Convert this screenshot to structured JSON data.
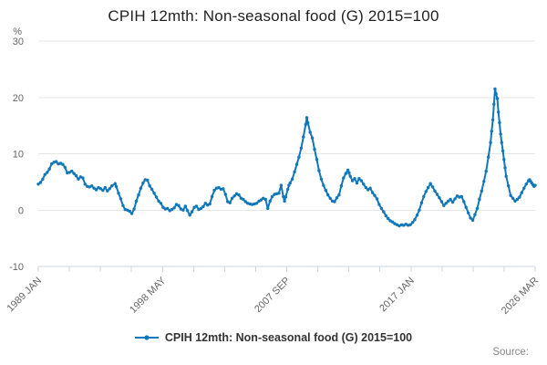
{
  "chart_data": {
    "type": "line",
    "title": "CPIH 12mth: Non-seasonal food (G) 2015=100",
    "ylabel": "%",
    "legend_label": "CPIH 12mth: Non-seasonal food (G) 2015=100",
    "source_label": "Source:",
    "ylim": [
      -10,
      30
    ],
    "y_ticks": [
      30,
      20,
      10,
      0,
      -10
    ],
    "grid": "horizontal",
    "legend_position": "bottom-center",
    "x_axis": {
      "unit": "months_since_1989_JAN",
      "total_months": 446,
      "minor_ticks": 17,
      "tick_labels": [
        "1989 JAN",
        "1998 MAY",
        "2007 SEP",
        "2017 JAN",
        "2026 MAR"
      ],
      "label_rotation_deg": -45
    },
    "colors": {
      "series": "#1078ba",
      "gridline": "#e6e6e6",
      "axis": "#ccd6eb",
      "tick_label": "#666666",
      "title": "#222222",
      "legend_text": "#333333",
      "source_text": "#888888"
    },
    "series": [
      {
        "name": "CPIH 12mth: Non-seasonal food (G) 2015=100",
        "color": "#1078ba",
        "marker": "circle",
        "points": [
          [
            0,
            4.6
          ],
          [
            2,
            4.9
          ],
          [
            4,
            5.5
          ],
          [
            6,
            6.3
          ],
          [
            8,
            6.7
          ],
          [
            10,
            7.3
          ],
          [
            12,
            8.2
          ],
          [
            14,
            8.5
          ],
          [
            16,
            8.6
          ],
          [
            18,
            8.2
          ],
          [
            20,
            8.3
          ],
          [
            22,
            8.1
          ],
          [
            24,
            7.6
          ],
          [
            26,
            6.6
          ],
          [
            28,
            6.7
          ],
          [
            30,
            6.9
          ],
          [
            32,
            6.5
          ],
          [
            34,
            6.1
          ],
          [
            36,
            5.5
          ],
          [
            38,
            5.9
          ],
          [
            40,
            5.7
          ],
          [
            42,
            4.6
          ],
          [
            44,
            4.2
          ],
          [
            46,
            4.1
          ],
          [
            48,
            4.3
          ],
          [
            50,
            3.9
          ],
          [
            52,
            3.6
          ],
          [
            54,
            4.0
          ],
          [
            56,
            3.8
          ],
          [
            58,
            3.5
          ],
          [
            60,
            4.0
          ],
          [
            62,
            3.4
          ],
          [
            64,
            3.8
          ],
          [
            66,
            4.3
          ],
          [
            69,
            4.7
          ],
          [
            70,
            4.2
          ],
          [
            72,
            3.0
          ],
          [
            74,
            2.0
          ],
          [
            76,
            0.8
          ],
          [
            78,
            0.1
          ],
          [
            80,
            0.0
          ],
          [
            82,
            -0.2
          ],
          [
            84,
            -0.6
          ],
          [
            86,
            0.2
          ],
          [
            88,
            1.6
          ],
          [
            90,
            2.7
          ],
          [
            92,
            3.9
          ],
          [
            94,
            4.8
          ],
          [
            96,
            5.4
          ],
          [
            98,
            5.3
          ],
          [
            100,
            4.3
          ],
          [
            102,
            3.7
          ],
          [
            104,
            3.0
          ],
          [
            106,
            2.3
          ],
          [
            108,
            1.6
          ],
          [
            110,
            1.2
          ],
          [
            112,
            0.5
          ],
          [
            114,
            0.2
          ],
          [
            116,
            0.3
          ],
          [
            118,
            -0.1
          ],
          [
            120,
            0.1
          ],
          [
            122,
            0.4
          ],
          [
            124,
            1.0
          ],
          [
            126,
            0.8
          ],
          [
            128,
            0.2
          ],
          [
            130,
            0.0
          ],
          [
            132,
            0.7
          ],
          [
            134,
            -0.1
          ],
          [
            136,
            -0.9
          ],
          [
            138,
            -0.3
          ],
          [
            140,
            0.5
          ],
          [
            142,
            0.7
          ],
          [
            144,
            0.1
          ],
          [
            146,
            0.3
          ],
          [
            148,
            0.6
          ],
          [
            150,
            1.2
          ],
          [
            152,
            0.9
          ],
          [
            154,
            1.1
          ],
          [
            156,
            2.4
          ],
          [
            158,
            3.5
          ],
          [
            160,
            3.9
          ],
          [
            162,
            4.0
          ],
          [
            164,
            3.7
          ],
          [
            166,
            3.8
          ],
          [
            168,
            2.8
          ],
          [
            170,
            1.5
          ],
          [
            172,
            1.3
          ],
          [
            174,
            2.1
          ],
          [
            176,
            2.5
          ],
          [
            178,
            2.9
          ],
          [
            180,
            2.7
          ],
          [
            182,
            2.1
          ],
          [
            184,
            1.9
          ],
          [
            186,
            1.5
          ],
          [
            188,
            1.2
          ],
          [
            190,
            1.1
          ],
          [
            192,
            1.0
          ],
          [
            194,
            1.1
          ],
          [
            196,
            1.2
          ],
          [
            198,
            1.6
          ],
          [
            200,
            1.8
          ],
          [
            202,
            2.1
          ],
          [
            204,
            1.9
          ],
          [
            206,
            0.3
          ],
          [
            208,
            1.6
          ],
          [
            210,
            2.4
          ],
          [
            212,
            2.8
          ],
          [
            214,
            2.9
          ],
          [
            216,
            3.0
          ],
          [
            218,
            4.4
          ],
          [
            220,
            2.4
          ],
          [
            221,
            1.6
          ],
          [
            222,
            2.3
          ],
          [
            224,
            3.7
          ],
          [
            225,
            4.4
          ],
          [
            226,
            4.8
          ],
          [
            228,
            5.5
          ],
          [
            230,
            6.8
          ],
          [
            232,
            8.1
          ],
          [
            234,
            9.4
          ],
          [
            236,
            11.0
          ],
          [
            238,
            13.0
          ],
          [
            240,
            15.2
          ],
          [
            241,
            16.4
          ],
          [
            242,
            15.5
          ],
          [
            244,
            13.8
          ],
          [
            246,
            12.8
          ],
          [
            248,
            10.8
          ],
          [
            250,
            9.0
          ],
          [
            252,
            7.0
          ],
          [
            254,
            5.5
          ],
          [
            256,
            4.4
          ],
          [
            258,
            3.5
          ],
          [
            260,
            2.7
          ],
          [
            262,
            2.1
          ],
          [
            264,
            1.6
          ],
          [
            266,
            1.5
          ],
          [
            268,
            2.2
          ],
          [
            270,
            2.7
          ],
          [
            272,
            4.3
          ],
          [
            274,
            5.7
          ],
          [
            276,
            6.5
          ],
          [
            278,
            7.1
          ],
          [
            279,
            6.6
          ],
          [
            280,
            6.0
          ],
          [
            282,
            5.2
          ],
          [
            284,
            5.6
          ],
          [
            286,
            4.8
          ],
          [
            288,
            5.6
          ],
          [
            290,
            5.2
          ],
          [
            292,
            4.6
          ],
          [
            294,
            4.0
          ],
          [
            296,
            3.6
          ],
          [
            298,
            3.9
          ],
          [
            300,
            3.1
          ],
          [
            302,
            2.6
          ],
          [
            304,
            2.0
          ],
          [
            306,
            1.0
          ],
          [
            308,
            0.3
          ],
          [
            310,
            -0.3
          ],
          [
            312,
            -1.0
          ],
          [
            314,
            -1.5
          ],
          [
            316,
            -1.9
          ],
          [
            318,
            -2.1
          ],
          [
            320,
            -2.4
          ],
          [
            322,
            -2.6
          ],
          [
            324,
            -2.8
          ],
          [
            326,
            -2.6
          ],
          [
            328,
            -2.7
          ],
          [
            330,
            -2.5
          ],
          [
            332,
            -2.7
          ],
          [
            334,
            -2.6
          ],
          [
            336,
            -2.2
          ],
          [
            338,
            -1.7
          ],
          [
            340,
            -0.9
          ],
          [
            342,
            0.0
          ],
          [
            344,
            1.3
          ],
          [
            346,
            2.4
          ],
          [
            348,
            3.3
          ],
          [
            350,
            4.0
          ],
          [
            352,
            4.7
          ],
          [
            354,
            4.1
          ],
          [
            356,
            3.4
          ],
          [
            358,
            2.8
          ],
          [
            360,
            2.2
          ],
          [
            362,
            1.5
          ],
          [
            364,
            0.8
          ],
          [
            366,
            1.2
          ],
          [
            368,
            1.6
          ],
          [
            370,
            1.9
          ],
          [
            372,
            1.4
          ],
          [
            374,
            2.0
          ],
          [
            376,
            2.5
          ],
          [
            378,
            2.3
          ],
          [
            380,
            2.4
          ],
          [
            382,
            1.5
          ],
          [
            384,
            0.5
          ],
          [
            386,
            -0.5
          ],
          [
            388,
            -1.4
          ],
          [
            390,
            -1.8
          ],
          [
            392,
            -0.8
          ],
          [
            394,
            0.3
          ],
          [
            396,
            1.9
          ],
          [
            398,
            3.4
          ],
          [
            400,
            5.1
          ],
          [
            402,
            6.9
          ],
          [
            404,
            9.4
          ],
          [
            406,
            12.0
          ],
          [
            407,
            14.0
          ],
          [
            408,
            16.0
          ],
          [
            409,
            18.8
          ],
          [
            410,
            21.5
          ],
          [
            411,
            20.6
          ],
          [
            412,
            19.8
          ],
          [
            413,
            17.4
          ],
          [
            414,
            15.5
          ],
          [
            415,
            13.5
          ],
          [
            416,
            12.0
          ],
          [
            417,
            10.5
          ],
          [
            418,
            9.0
          ],
          [
            419,
            7.5
          ],
          [
            420,
            6.0
          ],
          [
            422,
            4.3
          ],
          [
            424,
            2.6
          ],
          [
            426,
            2.1
          ],
          [
            428,
            1.6
          ],
          [
            430,
            1.9
          ],
          [
            432,
            2.3
          ],
          [
            434,
            3.1
          ],
          [
            436,
            3.9
          ],
          [
            438,
            4.6
          ],
          [
            440,
            5.2
          ],
          [
            441,
            5.4
          ],
          [
            442,
            5.1
          ],
          [
            443,
            4.8
          ],
          [
            444,
            4.5
          ],
          [
            445,
            4.2
          ],
          [
            446,
            4.4
          ]
        ]
      }
    ]
  }
}
